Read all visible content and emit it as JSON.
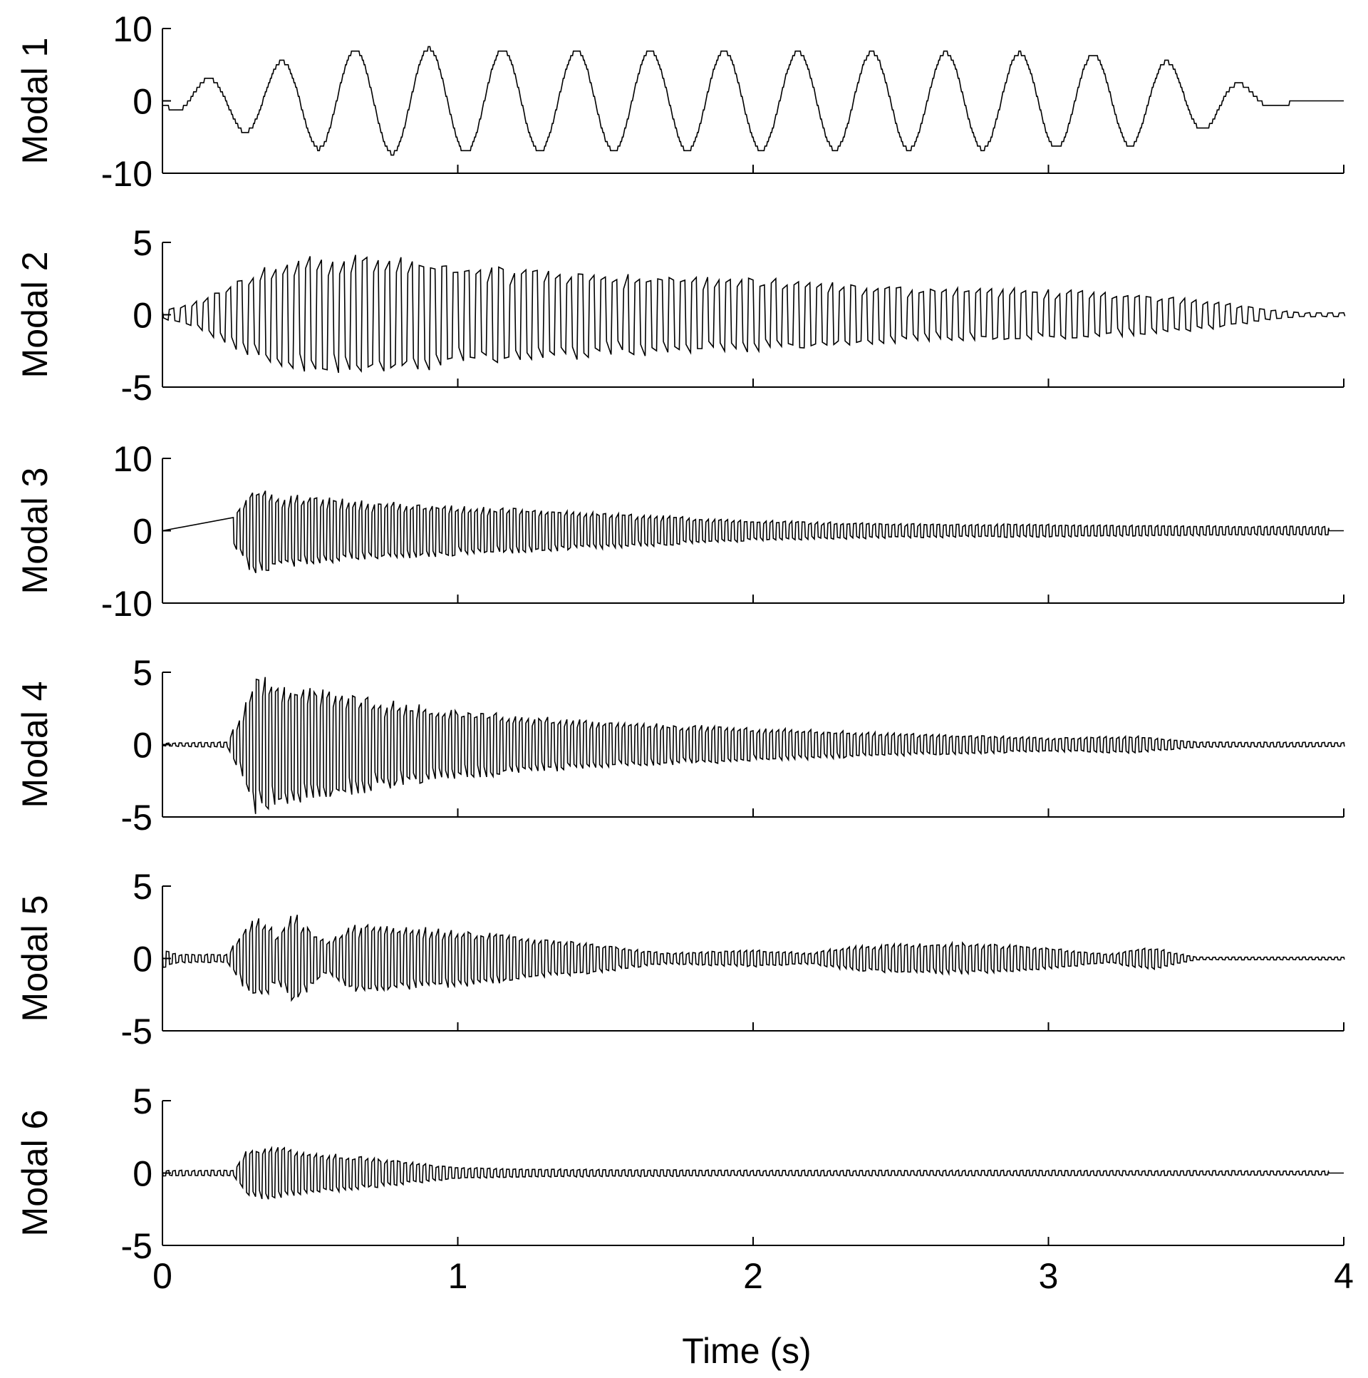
{
  "chart_data": {
    "type": "line",
    "title": "",
    "xlabel": "Time (s)",
    "xlim": [
      0,
      4
    ],
    "x_ticks": [
      0,
      1,
      2,
      3,
      4
    ],
    "x_tick_labels": [
      "0",
      "1",
      "2",
      "3",
      "4"
    ],
    "line_color": "#000000",
    "grid": false,
    "legend": "none",
    "shared_x_axis": true,
    "panels": [
      {
        "ylabel": "Modal 1",
        "ylim": [
          -10,
          10
        ],
        "y_ticks": [
          -10,
          0,
          10
        ],
        "y_tick_labels": [
          "-10",
          "0",
          "10"
        ],
        "signal": {
          "kind": "sinusoid",
          "start_s": 0.0,
          "end_s": 4.0,
          "frequency_hz": 4.0,
          "style": "stepped",
          "envelope": [
            [
              0.0,
              0.5
            ],
            [
              0.1,
              2.5
            ],
            [
              0.3,
              4.5
            ],
            [
              0.55,
              6.8
            ],
            [
              0.8,
              7.3
            ],
            [
              1.3,
              7.0
            ],
            [
              2.0,
              6.8
            ],
            [
              3.0,
              6.6
            ],
            [
              3.3,
              6.2
            ],
            [
              3.45,
              5.0
            ],
            [
              3.6,
              3.0
            ],
            [
              3.75,
              1.0
            ],
            [
              3.9,
              0.0
            ],
            [
              4.0,
              0.0
            ]
          ]
        }
      },
      {
        "ylabel": "Modal 2",
        "ylim": [
          -5,
          5
        ],
        "y_ticks": [
          -5,
          0,
          5
        ],
        "y_tick_labels": [
          "-5",
          "0",
          "5"
        ],
        "signal": {
          "kind": "oscillation",
          "start_s": 0.0,
          "end_s": 4.0,
          "frequency_hz": 26.0,
          "style": "vertical",
          "envelope": [
            [
              0.0,
              0.3
            ],
            [
              0.1,
              0.8
            ],
            [
              0.3,
              3.0
            ],
            [
              0.5,
              4.3
            ],
            [
              0.7,
              4.3
            ],
            [
              1.0,
              3.6
            ],
            [
              1.5,
              3.0
            ],
            [
              2.0,
              2.6
            ],
            [
              2.5,
              2.0
            ],
            [
              3.0,
              1.8
            ],
            [
              3.5,
              1.2
            ],
            [
              3.75,
              0.4
            ],
            [
              3.85,
              0.15
            ],
            [
              4.0,
              0.15
            ]
          ]
        }
      },
      {
        "ylabel": "Modal 3",
        "ylim": [
          -10,
          10
        ],
        "y_ticks": [
          -10,
          0,
          10
        ],
        "y_tick_labels": [
          "-10",
          "0",
          "10"
        ],
        "signal": {
          "kind": "oscillation",
          "start_s": 0.24,
          "end_s": 3.95,
          "frequency_hz": 46.0,
          "style": "vertical",
          "envelope": [
            [
              0.24,
              2.0
            ],
            [
              0.3,
              6.0
            ],
            [
              0.4,
              5.2
            ],
            [
              0.6,
              4.5
            ],
            [
              1.0,
              3.5
            ],
            [
              1.5,
              2.5
            ],
            [
              2.0,
              1.5
            ],
            [
              2.5,
              1.0
            ],
            [
              3.0,
              0.9
            ],
            [
              3.5,
              0.7
            ],
            [
              3.95,
              0.6
            ]
          ]
        }
      },
      {
        "ylabel": "Modal 4",
        "ylim": [
          -5,
          5
        ],
        "y_ticks": [
          -5,
          0,
          5
        ],
        "y_tick_labels": [
          "-5",
          "0",
          "5"
        ],
        "signal": {
          "kind": "oscillation",
          "start_s": 0.0,
          "end_s": 4.0,
          "frequency_hz": 46.0,
          "style": "vertical",
          "envelope": [
            [
              0.0,
              0.1
            ],
            [
              0.22,
              0.2
            ],
            [
              0.26,
              2.0
            ],
            [
              0.31,
              4.9
            ],
            [
              0.5,
              4.0
            ],
            [
              1.0,
              2.4
            ],
            [
              1.5,
              1.6
            ],
            [
              2.0,
              1.2
            ],
            [
              2.5,
              0.8
            ],
            [
              3.0,
              0.5
            ],
            [
              3.3,
              0.6
            ],
            [
              3.5,
              0.2
            ],
            [
              4.0,
              0.15
            ]
          ]
        }
      },
      {
        "ylabel": "Modal 5",
        "ylim": [
          -5,
          5
        ],
        "y_ticks": [
          -5,
          0,
          5
        ],
        "y_tick_labels": [
          "-5",
          "0",
          "5"
        ],
        "signal": {
          "kind": "oscillation",
          "start_s": 0.0,
          "end_s": 4.0,
          "frequency_hz": 46.0,
          "style": "vertical",
          "envelope": [
            [
              0.0,
              0.7
            ],
            [
              0.05,
              0.3
            ],
            [
              0.22,
              0.3
            ],
            [
              0.27,
              2.0
            ],
            [
              0.33,
              3.2
            ],
            [
              0.39,
              1.6
            ],
            [
              0.44,
              3.4
            ],
            [
              0.55,
              1.2
            ],
            [
              0.65,
              2.4
            ],
            [
              0.9,
              2.2
            ],
            [
              1.15,
              1.7
            ],
            [
              1.4,
              1.2
            ],
            [
              1.7,
              0.4
            ],
            [
              2.0,
              0.6
            ],
            [
              2.2,
              0.4
            ],
            [
              2.3,
              0.8
            ],
            [
              2.45,
              1.0
            ],
            [
              2.7,
              1.1
            ],
            [
              2.95,
              0.9
            ],
            [
              3.2,
              0.3
            ],
            [
              3.35,
              0.8
            ],
            [
              3.5,
              0.1
            ],
            [
              4.0,
              0.1
            ]
          ]
        }
      },
      {
        "ylabel": "Modal 6",
        "ylim": [
          -5,
          5
        ],
        "y_ticks": [
          -5,
          0,
          5
        ],
        "y_tick_labels": [
          "-5",
          "0",
          "5"
        ],
        "signal": {
          "kind": "oscillation",
          "start_s": 0.0,
          "end_s": 3.95,
          "frequency_hz": 46.0,
          "style": "vertical",
          "envelope": [
            [
              0.0,
              0.2
            ],
            [
              0.24,
              0.2
            ],
            [
              0.28,
              1.5
            ],
            [
              0.35,
              1.9
            ],
            [
              0.6,
              1.3
            ],
            [
              1.0,
              0.4
            ],
            [
              1.2,
              0.3
            ],
            [
              2.0,
              0.2
            ],
            [
              3.0,
              0.2
            ],
            [
              3.95,
              0.15
            ]
          ]
        }
      }
    ]
  }
}
